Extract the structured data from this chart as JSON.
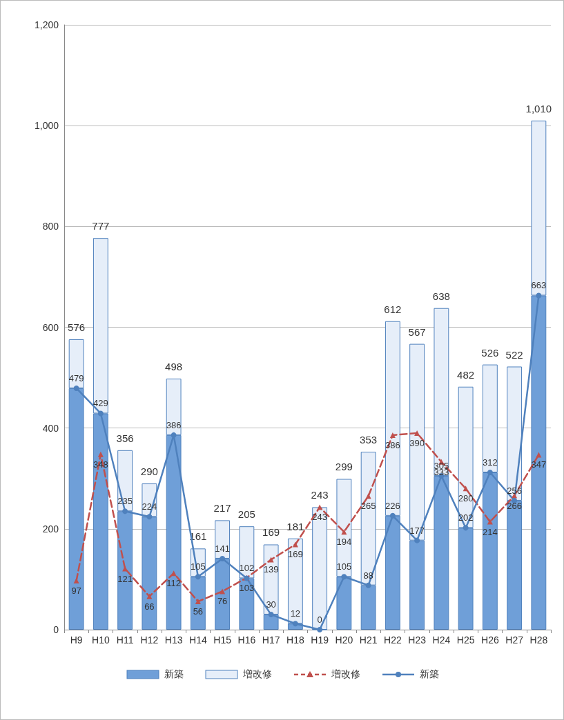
{
  "chart_data": {
    "type": "bar",
    "stacked": true,
    "categories": [
      "H9",
      "H10",
      "H11",
      "H12",
      "H13",
      "H14",
      "H15",
      "H16",
      "H17",
      "H18",
      "H19",
      "H20",
      "H21",
      "H22",
      "H23",
      "H24",
      "H25",
      "H26",
      "H27",
      "H28"
    ],
    "series": [
      {
        "name": "新築",
        "color": "#6f9fd8",
        "values": [
          479,
          429,
          235,
          224,
          386,
          105,
          141,
          102,
          30,
          12,
          0,
          105,
          88,
          226,
          177,
          305,
          202,
          312,
          256,
          663
        ]
      },
      {
        "name": "増改修",
        "color": "#e6eef9",
        "values": [
          97,
          348,
          121,
          66,
          112,
          56,
          76,
          103,
          139,
          169,
          243,
          194,
          265,
          386,
          390,
          333,
          280,
          214,
          266,
          347
        ]
      },
      {
        "name": "増改修",
        "type": "line",
        "color": "#c0504d",
        "marker": "triangle",
        "line_style": "dashed",
        "data_labels": true,
        "values": [
          97,
          348,
          121,
          66,
          112,
          56,
          76,
          103,
          139,
          169,
          243,
          194,
          265,
          386,
          390,
          333,
          280,
          214,
          266,
          347
        ]
      },
      {
        "name": "新築",
        "type": "line",
        "color": "#4f81bd",
        "marker": "circle",
        "line_style": "solid",
        "data_labels": true,
        "values": [
          479,
          429,
          235,
          224,
          386,
          105,
          141,
          102,
          30,
          12,
          0,
          105,
          88,
          226,
          177,
          305,
          202,
          312,
          256,
          663
        ]
      }
    ],
    "totals": [
      "576",
      "777",
      "356",
      "290",
      "498",
      "161",
      "217",
      "205",
      "169",
      "181",
      "243",
      "299",
      "353",
      "612",
      "567",
      "638",
      "482",
      "526",
      "522",
      "1,010"
    ],
    "ylim": [
      0,
      1200
    ],
    "yticks": [
      0,
      200,
      400,
      600,
      800,
      {
        "value": 1000,
        "label": "1,000"
      },
      {
        "value": 1200,
        "label": "1,200"
      }
    ],
    "grid": "y",
    "legend": "bottom"
  }
}
